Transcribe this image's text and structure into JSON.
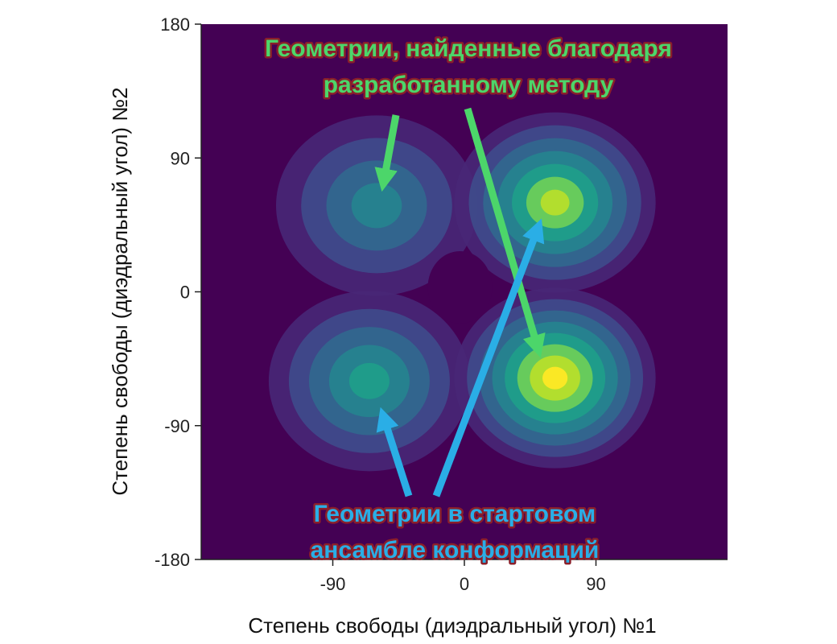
{
  "chart_data": {
    "type": "heatmap",
    "subtype": "2d-density-contour",
    "xlabel": "Степень свободы (диэдральный угол) №1",
    "ylabel": "Степень свободы (диэдральный угол) №2",
    "xlim": [
      -180,
      180
    ],
    "ylim": [
      -180,
      180
    ],
    "xticks": [
      -90,
      0,
      90
    ],
    "yticks": [
      -180,
      -90,
      0,
      90,
      180
    ],
    "colormap": [
      "#440154",
      "#482777",
      "#3f4a8a",
      "#31678e",
      "#26838f",
      "#1f9d8a",
      "#6cce5a",
      "#b6de2b",
      "#fee825"
    ],
    "background_color": "#440154",
    "grid": false,
    "legend": "none",
    "density_modes": [
      {
        "x": -60,
        "y": 58,
        "peak": 0.55
      },
      {
        "x": 62,
        "y": 60,
        "peak": 0.9
      },
      {
        "x": -65,
        "y": -60,
        "peak": 0.62
      },
      {
        "x": 62,
        "y": -58,
        "peak": 1.0
      }
    ],
    "annotations": [
      {
        "id": "found-geometries",
        "lines": [
          "Геометрии, найденные благодаря",
          "разработанному методу"
        ],
        "color": "#4cd66a",
        "position": "top",
        "arrows_to": [
          {
            "x": -55,
            "y": 75
          },
          {
            "x": 50,
            "y": -37
          }
        ]
      },
      {
        "id": "start-ensemble",
        "lines": [
          "Геометрии в стартовом",
          "ансамбле конформаций"
        ],
        "color": "#2aaee6",
        "position": "bottom",
        "arrows_to": [
          {
            "x": -55,
            "y": -85
          },
          {
            "x": 50,
            "y": 42
          }
        ]
      }
    ]
  }
}
